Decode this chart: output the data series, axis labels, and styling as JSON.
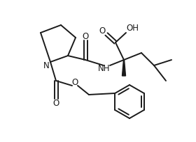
{
  "bg_color": "#ffffff",
  "line_color": "#1a1a1a",
  "line_width": 1.4,
  "font_size": 8.5,
  "NH_label": "NH",
  "N_label": "N",
  "O_labels": [
    "O",
    "O",
    "O",
    "O"
  ],
  "OH_label": "OH"
}
